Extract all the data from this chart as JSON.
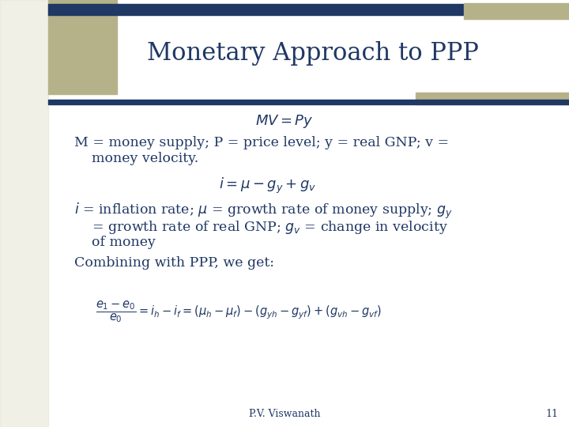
{
  "title": "Monetary Approach to PPP",
  "title_color": "#1F3864",
  "title_fontsize": 22,
  "bg_color": "#FFFFFF",
  "stripe_color": "#D8D5BC",
  "olive_color": "#B5B28A",
  "navy_color": "#1F3864",
  "footer_text": "P.V. Viswanath",
  "footer_page": "11",
  "body_color": "#1F3864",
  "eq1": "$MV = Py$",
  "line1": "M = money supply; P = price level; y = real GNP; v =",
  "line2": "    money velocity.",
  "eq2": "$i = \\mu - g_y + g_v$",
  "line3": "$i$ = inflation rate; $\\mu$ = growth rate of money supply; $g_y$",
  "line4": "    = growth rate of real GNP; $g_v$ = change in velocity",
  "line5": "    of money",
  "line6": "Combining with PPP, we get:",
  "eq3": "$\\dfrac{e_1 - e_0}{e_0} = i_h - i_f = (\\mu_h - \\mu_f) - (g_{yh} - g_{yf}) + (g_{vh} - g_{vf})$",
  "figw": 7.2,
  "figh": 5.4,
  "dpi": 100
}
